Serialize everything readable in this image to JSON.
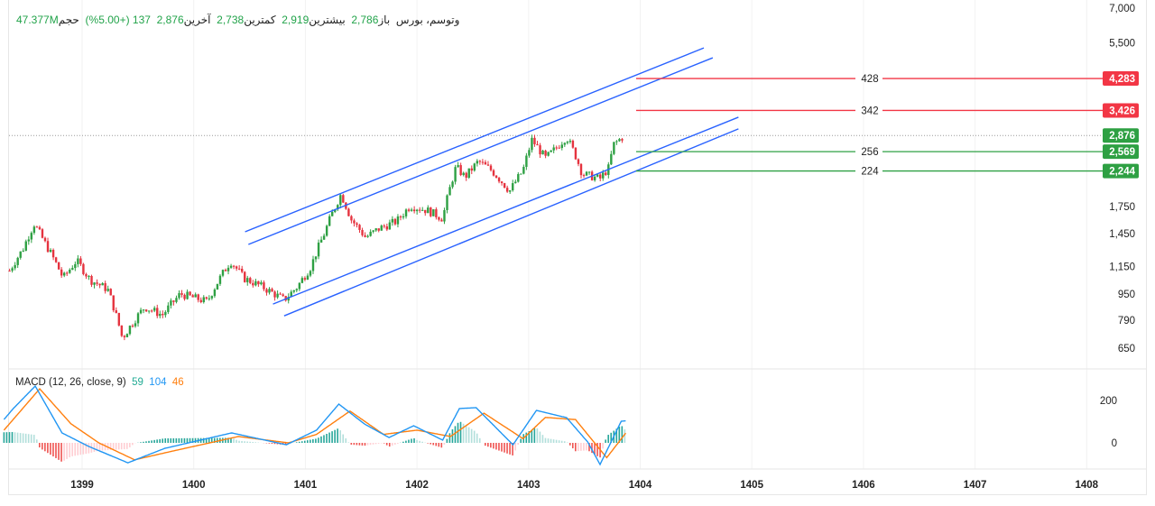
{
  "header": {
    "symbol": "وتوسم، بورس",
    "open_label": "باز",
    "open": "2,786",
    "high_label": "بیشترین",
    "high": "2,919",
    "low_label": "کمترین",
    "low": "2,738",
    "close_label": "آخرین",
    "close": "2,876",
    "change": "137 (+5.00%)",
    "volume_label": "حجم",
    "volume": "47.377M"
  },
  "macd_legend": {
    "title": "MACD (12, 26, close, 9)",
    "hist": "59",
    "macd": "104",
    "signal": "46"
  },
  "colors": {
    "up": "#22ab94",
    "down": "#f23645",
    "candle_up": "#2ea043",
    "candle_down": "#e5333f",
    "channel": "#2962ff",
    "resistance": "#f23645",
    "support": "#2ea043",
    "macd_line": "#2196f3",
    "signal_line": "#ff7f0e"
  },
  "chart_data": [
    {
      "type": "candlestick",
      "y_scale": "log",
      "price_axis_ticks": [
        "7,000",
        "5,500",
        "1,750",
        "1,450",
        "1,150",
        "950",
        "790",
        "650"
      ],
      "price_axis_values": [
        7000,
        5500,
        1750,
        1450,
        1150,
        950,
        790,
        650
      ],
      "time_axis_ticks": [
        "1399",
        "1400",
        "1401",
        "1402",
        "1403",
        "1404",
        "1405",
        "1406",
        "1407",
        "1408"
      ],
      "last_price": 2876,
      "close_path": [
        [
          1398.35,
          1118
        ],
        [
          1398.47,
          1300
        ],
        [
          1398.57,
          1550
        ],
        [
          1398.67,
          1350
        ],
        [
          1398.83,
          1060
        ],
        [
          1398.95,
          1200
        ],
        [
          1399.07,
          1050
        ],
        [
          1399.23,
          980
        ],
        [
          1399.36,
          697
        ],
        [
          1399.48,
          800
        ],
        [
          1399.56,
          867
        ],
        [
          1399.72,
          820
        ],
        [
          1399.88,
          950
        ],
        [
          1400.12,
          900
        ],
        [
          1400.33,
          1195
        ],
        [
          1400.45,
          1060
        ],
        [
          1400.61,
          1000
        ],
        [
          1400.81,
          911
        ],
        [
          1400.93,
          1000
        ],
        [
          1401.05,
          1150
        ],
        [
          1401.17,
          1450
        ],
        [
          1401.32,
          1910
        ],
        [
          1401.41,
          1600
        ],
        [
          1401.54,
          1410
        ],
        [
          1401.66,
          1500
        ],
        [
          1401.82,
          1580
        ],
        [
          1401.94,
          1760
        ],
        [
          1402.1,
          1700
        ],
        [
          1402.23,
          1610
        ],
        [
          1402.35,
          2310
        ],
        [
          1402.43,
          2150
        ],
        [
          1402.55,
          2400
        ],
        [
          1402.67,
          2250
        ],
        [
          1402.83,
          1950
        ],
        [
          1402.95,
          2250
        ],
        [
          1403.03,
          2790
        ],
        [
          1403.15,
          2450
        ],
        [
          1403.23,
          2600
        ],
        [
          1403.34,
          2850
        ],
        [
          1403.42,
          2500
        ],
        [
          1403.48,
          2200
        ],
        [
          1403.64,
          2125
        ],
        [
          1403.72,
          2300
        ],
        [
          1403.76,
          2700
        ],
        [
          1403.86,
          2876
        ]
      ],
      "channel_lines": [
        {
          "from": [
            1400.46,
            1467
          ],
          "to": [
            1404.57,
            5304
          ]
        },
        {
          "from": [
            1400.49,
            1343
          ],
          "to": [
            1404.65,
            4951
          ]
        },
        {
          "from": [
            1400.71,
            885
          ],
          "to": [
            1404.88,
            3268
          ]
        },
        {
          "from": [
            1400.81,
            815
          ],
          "to": [
            1404.88,
            3012
          ]
        }
      ],
      "levels": [
        {
          "price": 4283,
          "price_label": "4,283",
          "label": "428",
          "kind": "resistance"
        },
        {
          "price": 3426,
          "price_label": "3,426",
          "label": "342",
          "kind": "resistance"
        },
        {
          "price": 2569,
          "price_label": "2,569",
          "label": "256",
          "kind": "support"
        },
        {
          "price": 2244,
          "price_label": "2,244",
          "label": "224",
          "kind": "support"
        }
      ],
      "last_price_label": "2,876"
    },
    {
      "type": "line",
      "name": "MACD (12, 26, close, 9)",
      "y_ticks": [
        "200",
        "0"
      ],
      "y_tick_values": [
        200,
        0
      ],
      "macd": [
        [
          1398.3,
          110
        ],
        [
          1398.38,
          160
        ],
        [
          1398.58,
          268
        ],
        [
          1398.82,
          47
        ],
        [
          1399.06,
          -17
        ],
        [
          1399.41,
          -94
        ],
        [
          1399.74,
          -26
        ],
        [
          1400.34,
          47
        ],
        [
          1400.83,
          -9
        ],
        [
          1401.1,
          60
        ],
        [
          1401.3,
          183
        ],
        [
          1401.53,
          89
        ],
        [
          1401.75,
          25
        ],
        [
          1401.97,
          81
        ],
        [
          1402.23,
          13
        ],
        [
          1402.38,
          162
        ],
        [
          1402.53,
          166
        ],
        [
          1402.86,
          -9
        ],
        [
          1403.07,
          153
        ],
        [
          1403.34,
          119
        ],
        [
          1403.53,
          4
        ],
        [
          1403.64,
          -102
        ],
        [
          1403.83,
          102
        ],
        [
          1403.87,
          104
        ]
      ],
      "signal": [
        [
          1398.3,
          60
        ],
        [
          1398.62,
          255
        ],
        [
          1398.9,
          90
        ],
        [
          1399.15,
          0
        ],
        [
          1399.47,
          -80
        ],
        [
          1399.8,
          -40
        ],
        [
          1400.4,
          30
        ],
        [
          1400.85,
          0
        ],
        [
          1401.1,
          40
        ],
        [
          1401.4,
          150
        ],
        [
          1401.7,
          40
        ],
        [
          1402.0,
          60
        ],
        [
          1402.3,
          30
        ],
        [
          1402.6,
          140
        ],
        [
          1402.95,
          20
        ],
        [
          1403.15,
          120
        ],
        [
          1403.42,
          110
        ],
        [
          1403.7,
          -70
        ],
        [
          1403.87,
          46
        ]
      ]
    }
  ]
}
